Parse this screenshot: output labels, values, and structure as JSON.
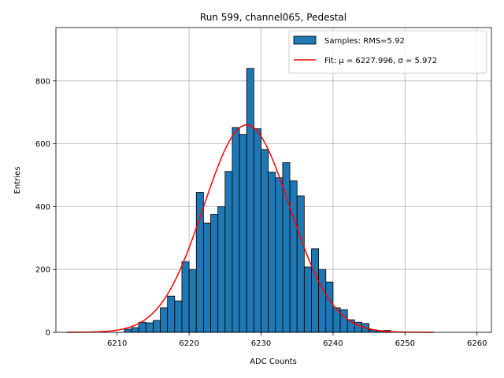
{
  "chart_data": {
    "type": "bar",
    "title": "Run 599, channel065, Pedestal",
    "xlabel": "ADC Counts",
    "ylabel": "Entries",
    "xlim": [
      6201.5,
      6262
    ],
    "ylim": [
      0,
      970
    ],
    "xticks": [
      6210,
      6220,
      6230,
      6240,
      6250,
      6260
    ],
    "yticks": [
      0,
      200,
      400,
      600,
      800
    ],
    "grid": true,
    "legend_placement": "top-right",
    "bin_edges": [
      6211,
      6212,
      6213,
      6214,
      6215,
      6216,
      6217,
      6218,
      6219,
      6220,
      6221,
      6222,
      6223,
      6224,
      6225,
      6226,
      6227,
      6228,
      6229,
      6230,
      6231,
      6232,
      6233,
      6234,
      6235,
      6236,
      6237,
      6238,
      6239,
      6240,
      6241,
      6242,
      6243,
      6244,
      6245,
      6246,
      6247,
      6248
    ],
    "counts": [
      10,
      15,
      32,
      30,
      38,
      78,
      115,
      100,
      225,
      200,
      445,
      348,
      375,
      400,
      512,
      652,
      630,
      840,
      648,
      582,
      510,
      492,
      540,
      482,
      434,
      208,
      266,
      200,
      160,
      78,
      72,
      40,
      32,
      28,
      8,
      5,
      6
    ],
    "series": [
      {
        "name": "Samples: RMS=5.92",
        "kind": "histogram",
        "color": "#1f77b4",
        "edgecolor": "#000000"
      },
      {
        "name": "Fit: μ = 6227.996, σ = 5.972",
        "kind": "gaussian-fit",
        "color": "#ff0000",
        "mu": 6227.996,
        "sigma": 5.972,
        "amplitude": 660,
        "x_range": [
          6203,
          6254
        ]
      }
    ]
  }
}
